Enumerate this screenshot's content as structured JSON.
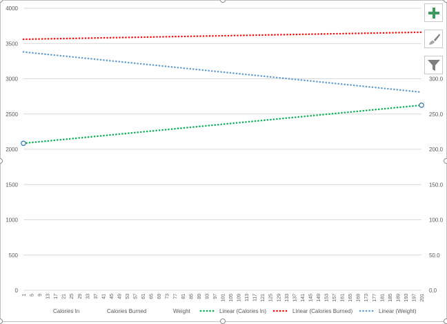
{
  "colors": {
    "calories_in": "#00b050",
    "calories_burned": "#ff0000",
    "weight": "#5b9bd5",
    "gridline": "#d9d9d9",
    "axis_text": "#595959",
    "add_button": "#3c9b5a",
    "brush_icon": "#7f7f7f",
    "filter_icon": "#7f7f7f"
  },
  "icons": {
    "chart_elements": "plus-icon",
    "chart_styles": "paintbrush-icon",
    "chart_filters": "funnel-icon"
  },
  "chart_data": {
    "type": "line",
    "title": "",
    "xlabel": "",
    "ylabel": "",
    "x_start": 1,
    "x_end": 201,
    "x_tick_labels": [
      "1",
      "5",
      "9",
      "13",
      "17",
      "21",
      "25",
      "29",
      "33",
      "37",
      "41",
      "45",
      "49",
      "53",
      "57",
      "61",
      "65",
      "69",
      "73",
      "77",
      "81",
      "85",
      "89",
      "93",
      "97",
      "101",
      "105",
      "109",
      "113",
      "117",
      "121",
      "125",
      "129",
      "133",
      "137",
      "141",
      "145",
      "149",
      "153",
      "157",
      "161",
      "165",
      "169",
      "173",
      "177",
      "181",
      "185",
      "189",
      "193",
      "197",
      "201"
    ],
    "y_left": {
      "ylim": [
        0,
        4000
      ],
      "ticks": [
        "0",
        "500",
        "1000",
        "1500",
        "2000",
        "2500",
        "3000",
        "3500",
        "4000"
      ]
    },
    "y_right": {
      "ylim": [
        0,
        400
      ],
      "ticks": [
        "0.0",
        "50.0",
        "100.0",
        "150.0",
        "200.0",
        "250.0",
        "300.0"
      ]
    },
    "gridlines": true,
    "legend_position": "bottom",
    "series": [
      {
        "name": "Calories In",
        "kind": "data",
        "axis": "left",
        "visible": false,
        "legend_marker": "none"
      },
      {
        "name": "Calories Burned",
        "kind": "data",
        "axis": "left",
        "visible": false,
        "legend_marker": "none"
      },
      {
        "name": "Weight",
        "kind": "data",
        "axis": "right",
        "visible": false,
        "legend_marker": "none"
      },
      {
        "name": "Linear (Calories In)",
        "kind": "trendline",
        "axis": "left",
        "x": [
          1,
          201
        ],
        "y": [
          2085,
          2625
        ],
        "color_key": "calories_in",
        "selected": true,
        "legend_marker": "dotted"
      },
      {
        "name": "Linear (Calories Burned)",
        "kind": "trendline",
        "axis": "left",
        "x": [
          1,
          201
        ],
        "y": [
          3560,
          3660
        ],
        "color_key": "calories_burned",
        "selected": false,
        "legend_marker": "dotted"
      },
      {
        "name": "Linear (Weight)",
        "kind": "trendline",
        "axis": "right",
        "x": [
          1,
          201
        ],
        "y": [
          338,
          281
        ],
        "color_key": "weight",
        "selected": false,
        "legend_marker": "dotted"
      }
    ]
  }
}
